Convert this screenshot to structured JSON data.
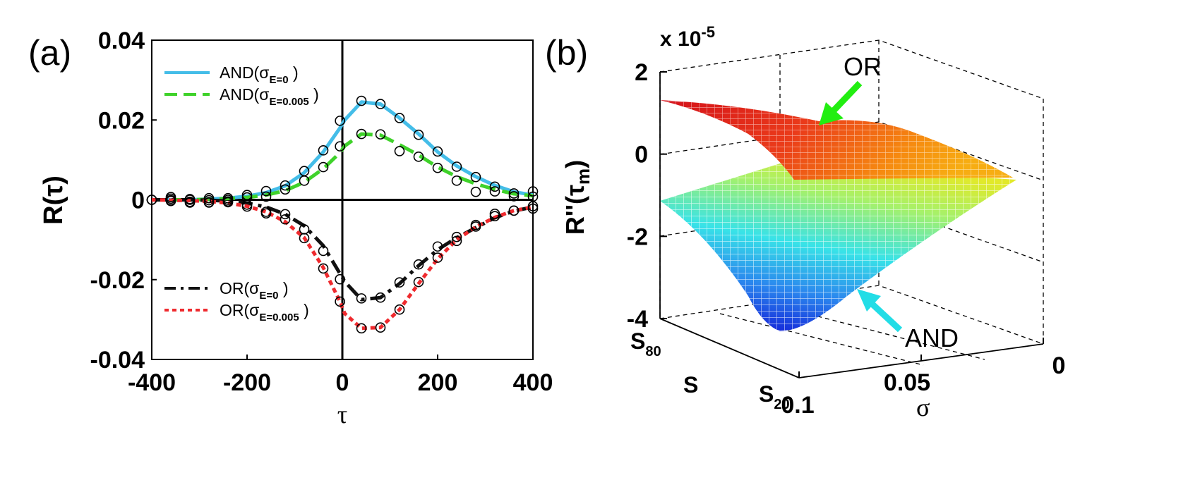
{
  "chart_data": [
    {
      "panel": "(a)",
      "type": "line",
      "xlabel": "τ",
      "ylabel": "R(τ)",
      "xlim": [
        -400,
        400
      ],
      "ylim": [
        -0.04,
        0.04
      ],
      "xticks": [
        -400,
        -200,
        0,
        200,
        400
      ],
      "xtick_labels": [
        "-400",
        "-200",
        "0",
        "200",
        "400"
      ],
      "yticks": [
        -0.04,
        -0.02,
        0,
        0.02,
        0.04
      ],
      "ytick_labels": [
        "-0.04",
        "-0.02",
        "0",
        "0.02",
        "0.04"
      ],
      "legend_upper": [
        {
          "prefix": "AND(",
          "sigma": "σ",
          "sub": "E",
          "value": "=0",
          "suffix": " )"
        },
        {
          "prefix": "AND(",
          "sigma": "σ",
          "sub": "E",
          "value": "=0.005",
          "suffix": " )"
        }
      ],
      "legend_lower": [
        {
          "prefix": "OR(",
          "sigma": "σ",
          "sub": "E",
          "value": "=0",
          "suffix": " )"
        },
        {
          "prefix": "OR(",
          "sigma": "σ",
          "sub": "E",
          "value": "=0.005",
          "suffix": " )"
        }
      ],
      "series": [
        {
          "name": "AND(σE=0)",
          "color": "#44bde8",
          "style": "solid",
          "x": [
            -400,
            -360,
            -320,
            -280,
            -240,
            -200,
            -160,
            -120,
            -80,
            -40,
            -5,
            5,
            40,
            80,
            120,
            160,
            200,
            240,
            280,
            320,
            360,
            400
          ],
          "y": [
            0,
            0,
            0,
            0.0002,
            0.0004,
            0.0009,
            0.0018,
            0.0035,
            0.0068,
            0.012,
            0.018,
            0.02,
            0.0245,
            0.024,
            0.0205,
            0.0165,
            0.012,
            0.0085,
            0.0058,
            0.0036,
            0.002,
            0.0012
          ],
          "markers_x": [
            -400,
            -360,
            -320,
            -280,
            -240,
            -200,
            -160,
            -120,
            -80,
            -40,
            -5,
            40,
            80,
            120,
            160,
            200,
            240,
            280,
            320,
            360,
            400
          ],
          "markers_y": [
            0,
            0.0007,
            0.0002,
            0.0004,
            0.0004,
            0.0012,
            0.0022,
            0.0036,
            0.0072,
            0.0124,
            0.0198,
            0.0248,
            0.024,
            0.0205,
            0.0163,
            0.0121,
            0.0083,
            0.0057,
            0.0033,
            0.0016,
            0.0021
          ]
        },
        {
          "name": "AND(σE=0.005)",
          "color": "#3fd22a",
          "style": "dashed",
          "x": [
            -400,
            -360,
            -320,
            -280,
            -240,
            -200,
            -160,
            -120,
            -80,
            -40,
            -5,
            5,
            40,
            80,
            120,
            160,
            200,
            240,
            280,
            320,
            360,
            400
          ],
          "y": [
            0,
            0,
            0,
            0.0001,
            0.0003,
            0.0006,
            0.0012,
            0.0023,
            0.0044,
            0.0078,
            0.0118,
            0.0135,
            0.0165,
            0.0162,
            0.0138,
            0.0112,
            0.0082,
            0.0058,
            0.004,
            0.0026,
            0.0015,
            0.001
          ],
          "markers_x": [
            -400,
            -360,
            -320,
            -280,
            -240,
            -200,
            -160,
            -120,
            -80,
            -40,
            -5,
            40,
            80,
            120,
            160,
            200,
            240,
            280,
            320,
            360,
            400
          ],
          "markers_y": [
            0,
            0.0003,
            0,
            -0.0001,
            0,
            0.0006,
            0.0008,
            0.0026,
            0.0048,
            0.0082,
            0.0134,
            0.0165,
            0.0164,
            0.0122,
            0.0108,
            0.008,
            0.0048,
            0.002,
            0.0021,
            0.0009,
            0.0008
          ]
        },
        {
          "name": "OR(σE=0)",
          "color": "#111111",
          "style": "dashdot",
          "x": [
            -400,
            -360,
            -320,
            -280,
            -240,
            -200,
            -160,
            -120,
            -80,
            -40,
            -5,
            5,
            40,
            80,
            120,
            160,
            200,
            240,
            280,
            320,
            360,
            400
          ],
          "y": [
            0,
            0,
            0,
            -0.0001,
            -0.0003,
            -0.0008,
            -0.0018,
            -0.0036,
            -0.0065,
            -0.0115,
            -0.0185,
            -0.0205,
            -0.025,
            -0.0245,
            -0.021,
            -0.0165,
            -0.0125,
            -0.0095,
            -0.007,
            -0.0045,
            -0.0028,
            -0.0018
          ],
          "markers_x": [
            -400,
            -360,
            -320,
            -280,
            -240,
            -200,
            -160,
            -120,
            -80,
            -40,
            -5,
            40,
            80,
            120,
            160,
            200,
            240,
            280,
            320,
            360,
            400
          ],
          "markers_y": [
            0,
            -0.0003,
            -0.0005,
            -0.0006,
            -0.0004,
            -0.0012,
            -0.003,
            -0.0036,
            -0.0074,
            -0.0128,
            -0.0199,
            -0.0247,
            -0.0245,
            -0.0207,
            -0.0162,
            -0.0117,
            -0.0093,
            -0.0063,
            -0.0035,
            -0.0027,
            -0.0022
          ]
        },
        {
          "name": "OR(σE=0.005)",
          "color": "#ef2a2e",
          "style": "dotted",
          "x": [
            -400,
            -360,
            -320,
            -280,
            -240,
            -200,
            -160,
            -120,
            -80,
            -40,
            -5,
            5,
            40,
            80,
            120,
            160,
            200,
            240,
            280,
            320,
            360,
            400
          ],
          "y": [
            0,
            -0.0001,
            -0.0002,
            -0.0004,
            -0.0008,
            -0.0016,
            -0.003,
            -0.0055,
            -0.0095,
            -0.017,
            -0.0255,
            -0.0285,
            -0.0322,
            -0.032,
            -0.0275,
            -0.021,
            -0.0148,
            -0.01,
            -0.0068,
            -0.0044,
            -0.0027,
            -0.0018
          ],
          "markers_x": [
            -400,
            -360,
            -320,
            -280,
            -240,
            -200,
            -160,
            -120,
            -80,
            -40,
            -5,
            40,
            80,
            120,
            160,
            200,
            240,
            280,
            320,
            360,
            400
          ],
          "markers_y": [
            0,
            -0.0001,
            -0.0007,
            -0.0007,
            -0.0006,
            -0.0017,
            -0.0034,
            -0.0049,
            -0.0096,
            -0.0172,
            -0.0255,
            -0.0322,
            -0.032,
            -0.0275,
            -0.0206,
            -0.0145,
            -0.0103,
            -0.0067,
            -0.0041,
            -0.0027,
            -0.0016
          ]
        }
      ]
    },
    {
      "panel": "(b)",
      "type": "surface3d",
      "zlabel": "R''(τm)",
      "zlabel_main": "R''(τ",
      "zlabel_sub": "m",
      "zlabel_close": ")",
      "z_exponent": "x 10",
      "z_exponent_power": "-5",
      "zlim": [
        -4,
        2
      ],
      "zticks": [
        2,
        0,
        -2,
        -4
      ],
      "ztick_labels": [
        "2",
        "0",
        "-2",
        "-4"
      ],
      "sigma_label": "σ",
      "sigma_lim": [
        0,
        0.1
      ],
      "sigma_ticks": [
        0.1,
        0.05,
        0
      ],
      "sigma_tick_labels": [
        "0.1",
        "0.05",
        "0"
      ],
      "s_label": "S",
      "s_ticks": [
        {
          "main": "S",
          "sub": "80"
        },
        {
          "main": "S",
          "sub": "20"
        }
      ],
      "annotations": [
        "OR",
        "AND"
      ],
      "surfaces": [
        {
          "name": "OR",
          "colormap": "red-to-orange",
          "corner_values": {
            "S80_sigma0.1": 1.3,
            "S80_sigma0": 0.5,
            "S20_sigma0.1": -0.6,
            "S20_sigma0": -0.6
          }
        },
        {
          "name": "AND",
          "colormap": "blue-to-yellow",
          "corner_values": {
            "S80_sigma0.1": -1.1,
            "S80_sigma0": -0.2,
            "S20_sigma0.1": -4.3,
            "S20_sigma0": -0.9
          }
        }
      ]
    }
  ],
  "panel_labels": [
    "(a)",
    "(b)"
  ]
}
